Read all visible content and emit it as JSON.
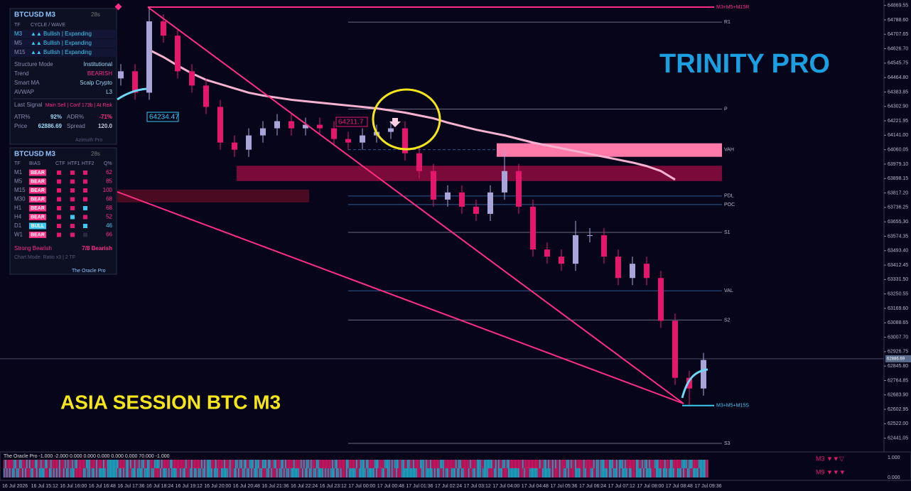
{
  "chart_data": {
    "type": "candlestick",
    "title": "TRINITY PRO",
    "subtitle": "ASIA SESSION BTC M3",
    "open": [
      64460,
      64500,
      64380,
      64780,
      64700,
      64500,
      64420,
      64300,
      64100,
      64060,
      64140,
      64180,
      64220,
      64180,
      64200,
      64180,
      64120,
      64100,
      64140,
      64160,
      64180,
      64040,
      63940,
      63780,
      63820,
      63740,
      63700,
      63820,
      63940,
      63740,
      63500,
      63460,
      63420,
      63580,
      63580,
      63460,
      63340,
      63420,
      63340,
      63100,
      62780,
      62720
    ],
    "high": [
      64540,
      64540,
      64860,
      64820,
      64740,
      64540,
      64460,
      64340,
      64140,
      64180,
      64220,
      64260,
      64260,
      64240,
      64240,
      64220,
      64160,
      64180,
      64200,
      64220,
      64220,
      64080,
      63980,
      63860,
      63860,
      63780,
      63860,
      64060,
      63980,
      63780,
      63540,
      63500,
      63660,
      63620,
      63620,
      63500,
      63460,
      63460,
      63380,
      63140,
      62820,
      62920
    ],
    "low": [
      64420,
      64340,
      64340,
      64660,
      64460,
      64380,
      64260,
      64060,
      64020,
      64020,
      64100,
      64140,
      64140,
      64140,
      64140,
      64080,
      64060,
      64060,
      64100,
      64120,
      64000,
      63900,
      63740,
      63740,
      63700,
      63660,
      63660,
      63780,
      63700,
      63460,
      63420,
      63380,
      63380,
      63540,
      63420,
      63300,
      63300,
      63300,
      63060,
      62740,
      62630,
      62680
    ],
    "close": [
      64500,
      64380,
      64780,
      64700,
      64500,
      64420,
      64300,
      64100,
      64060,
      64140,
      64180,
      64220,
      64180,
      64200,
      64180,
      64120,
      64100,
      64140,
      64160,
      64180,
      64040,
      63940,
      63780,
      63820,
      63740,
      63700,
      63820,
      63940,
      63740,
      63500,
      63460,
      63420,
      63580,
      63580,
      63460,
      63340,
      63420,
      63340,
      63100,
      62780,
      62720,
      62880
    ],
    "ma": [
      null,
      null,
      64620,
      64580,
      64532,
      64488,
      64452,
      64428,
      64404,
      64380,
      64364,
      64352,
      64340,
      64332,
      64324,
      64316,
      64308,
      64300,
      64292,
      64280,
      64268,
      64252,
      64236,
      64212,
      64192,
      64172,
      64156,
      64140,
      64120,
      64100,
      64084,
      64068,
      64052,
      64036,
      64020,
      64004,
      63988,
      63968,
      63940,
      63892,
      null,
      null
    ],
    "up_color": "#a9a5d8",
    "down_color": "#e3186c",
    "ma_color": "#f6b2d0",
    "ylim": [
      62380,
      64900
    ],
    "yticks": [
      64869.55,
      {
        "value": 64788.6,
        "label": "64788.60"
      },
      64707.65,
      {
        "value": 64626.7,
        "label": "64626.70"
      },
      64545.75,
      {
        "value": 64464.8,
        "label": "64464.80"
      },
      64383.85,
      {
        "value": 64302.9,
        "label": "64302.90"
      },
      64221.95,
      {
        "value": 64141.0,
        "label": "64141.00"
      },
      64060.05,
      {
        "value": 63979.1,
        "label": "63979.10"
      },
      63898.15,
      {
        "value": 63817.2,
        "label": "63817.20"
      },
      63736.25,
      {
        "value": 63655.3,
        "label": "63655.30"
      },
      63574.35,
      {
        "value": 63493.4,
        "label": "63493.40"
      },
      63412.45,
      {
        "value": 63331.5,
        "label": "63331.50"
      },
      63250.55,
      {
        "value": 63169.6,
        "label": "63169.60"
      },
      63088.65,
      {
        "value": 63007.7,
        "label": "63007.70"
      },
      62926.75,
      {
        "value": 62845.8,
        "label": "62845.80"
      },
      62764.85,
      {
        "value": 62683.9,
        "label": "62683.90"
      },
      62602.95,
      {
        "value": 62522.0,
        "label": "62522.00"
      },
      62441.05
    ],
    "time_labels": [
      "16 Jul 2026",
      "16 Jul 15:12",
      "16 Jul 16:00",
      "16 Jul 16:48",
      "16 Jul 17:36",
      "16 Jul 18:24",
      "16 Jul 19:12",
      "16 Jul 20:00",
      "16 Jul 20:48",
      "16 Jul 21:36",
      "16 Jul 22:24",
      "16 Jul 23:12",
      "17 Jul 00:00",
      "17 Jul 00:48",
      "17 Jul 01:36",
      "17 Jul 02:24",
      "17 Jul 03:12",
      "17 Jul 04:00",
      "17 Jul 04:48",
      "17 Jul 05:36",
      "17 Jul 06:24",
      "17 Jul 07:12",
      "17 Jul 08:00",
      "17 Jul 08:48",
      "17 Jul 09:36"
    ],
    "levels": [
      {
        "label": "R1",
        "value": 64776,
        "color": "#6a6a80"
      },
      {
        "label": "P",
        "value": 64288,
        "color": "#6a6a80"
      },
      {
        "label": "VAH",
        "value": 64060,
        "color": "#2f5a8e",
        "dashed": true
      },
      {
        "label": "PDL",
        "value": 63800,
        "color": "#2f5a8e"
      },
      {
        "label": "POC",
        "value": 63752,
        "color": "#2f5a8e"
      },
      {
        "label": "S1",
        "value": 63596,
        "color": "#6a6a80"
      },
      {
        "label": "VAL",
        "value": 63268,
        "color": "#2f5a8e"
      },
      {
        "label": "S2",
        "value": 63104,
        "color": "#6a6a80"
      },
      {
        "label": "S3",
        "value": 62412,
        "color": "#6a6a80"
      }
    ],
    "resistance": {
      "label": "M3+M5+M15R",
      "value": 64860,
      "color": "#ff2d84"
    },
    "support": {
      "label": "M3+M5+M15S",
      "value": 62624,
      "color": "#3cc8f0"
    },
    "zones": [
      {
        "high": 64096,
        "low": 64020,
        "color": "#ff7aa8"
      },
      {
        "high": 63970,
        "low": 63884,
        "color": "#7a0a3a"
      },
      {
        "high": 63836,
        "low": 63764,
        "color": "#4a0a22"
      }
    ],
    "annotations": [
      "64234.47",
      "64211.7"
    ],
    "last_price": 62886.69
  },
  "cycle_panel": {
    "symbol": "BTCUSD",
    "timeframe": "M3",
    "timer": "28s",
    "headers": [
      "TF",
      "CYCLE / WAVE"
    ],
    "rows": [
      [
        "M3",
        "▲▲ Bullish | Expanding"
      ],
      [
        "M5",
        "▲▲ Bullish | Expanding"
      ],
      [
        "M15",
        "▲▲ Bullish | Expanding"
      ]
    ],
    "settings": [
      [
        "Structure Mode",
        "Institutional"
      ],
      [
        "Trend",
        "BEARISH"
      ],
      [
        "Smart MA",
        "Scalp Crypto"
      ],
      [
        "AVWAP",
        "L3"
      ]
    ],
    "last_signal": [
      "Last Signal",
      "Main Sell | Conf 173b | At Risk"
    ],
    "stats": [
      [
        "ATR%",
        "92%",
        "ADR%",
        "-71%"
      ],
      [
        "Price",
        "62886.69",
        "Spread",
        "120.0"
      ]
    ],
    "footer": "Azimuth Pro"
  },
  "bias_panel": {
    "symbol": "BTCUSD",
    "timeframe": "M3",
    "timer": "28s",
    "headers": [
      "TF",
      "BIAS",
      "CTF",
      "HTF1",
      "HTF2",
      "Q%"
    ],
    "rows": [
      [
        "M1",
        "BEAR",
        "62"
      ],
      [
        "M5",
        "BEAR",
        "85"
      ],
      [
        "M15",
        "BEAR",
        "100"
      ],
      [
        "M30",
        "BEAR",
        "68"
      ],
      [
        "H1",
        "BEAR",
        "68"
      ],
      [
        "H4",
        "BEAR",
        "52"
      ],
      [
        "D1",
        "BULL",
        "46"
      ],
      [
        "W1",
        "BEAR",
        "66"
      ]
    ],
    "flag_colors": [
      [
        "#e3186c",
        "#e3186c",
        "#e3186c"
      ],
      [
        "#e3186c",
        "#e3186c",
        "#e3186c"
      ],
      [
        "#e3186c",
        "#e3186c",
        "#e3186c"
      ],
      [
        "#e3186c",
        "#e3186c",
        "#e3186c"
      ],
      [
        "#e3186c",
        "#e3186c",
        "#3cc8f0"
      ],
      [
        "#e3186c",
        "#3cc8f0",
        "#e3186c"
      ],
      [
        "#e3186c",
        "#e3186c",
        "#3cc8f0"
      ],
      [
        "#e3186c",
        "#e3186c",
        "#2a2a3a"
      ]
    ],
    "summary": [
      "Strong Bearish",
      "7/8 Bearish"
    ],
    "mode": "Chart Mode: Ratio x3 | 2 TF",
    "footer": "The Oracle Pro"
  },
  "oscillator": {
    "label": "The Oracle Pro -1.000 -2.000 0.000 0.000 0.000 0.000 0.000 70.000 -1.000",
    "ylim": [
      -0.14,
      1.29
    ],
    "yticks": [
      {
        "value": 1,
        "label": "1.000"
      },
      {
        "value": 0,
        "label": "0.000"
      }
    ],
    "legend": [
      "M3 ▼▼▽",
      "M9 ▼▼▼"
    ]
  }
}
